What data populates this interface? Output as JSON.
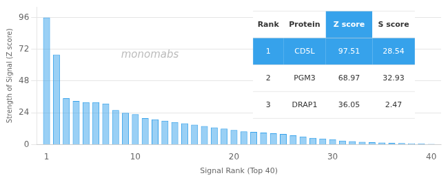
{
  "chart_data": {
    "type": "bar",
    "x": [
      1,
      2,
      3,
      4,
      5,
      6,
      7,
      8,
      9,
      10,
      11,
      12,
      13,
      14,
      15,
      16,
      17,
      18,
      19,
      20,
      21,
      22,
      23,
      24,
      25,
      26,
      27,
      28,
      29,
      30,
      31,
      32,
      33,
      34,
      35,
      36,
      37,
      38,
      39,
      40
    ],
    "values": [
      96,
      68,
      35,
      33,
      32,
      32,
      31,
      26,
      24,
      23,
      20,
      19,
      18,
      17,
      16,
      15,
      14,
      13,
      12,
      11,
      10,
      9.5,
      9,
      8.5,
      8,
      7,
      6,
      5,
      4.5,
      4,
      3,
      2.5,
      2,
      1.8,
      1.5,
      1.3,
      1.1,
      0.9,
      0.7,
      0.5
    ],
    "xlabel": "Signal Rank (Top 40)",
    "ylabel": "Strength of Signal (Z score)",
    "xlim": [
      0,
      41
    ],
    "ylim": [
      0,
      104
    ],
    "xticks": [
      1,
      10,
      20,
      30,
      40
    ],
    "yticks": [
      0,
      24,
      48,
      72,
      96
    ],
    "grid": "y",
    "annotations": [
      {
        "text": "monomabs"
      }
    ],
    "table": {
      "headers": [
        "Rank",
        "Protein",
        "Z score",
        "S score"
      ],
      "rows": [
        [
          "1",
          "CD5L",
          "97.51",
          "28.54"
        ],
        [
          "2",
          "PGM3",
          "68.97",
          "32.93"
        ],
        [
          "3",
          "DRAP1",
          "36.05",
          "2.47"
        ]
      ]
    }
  }
}
